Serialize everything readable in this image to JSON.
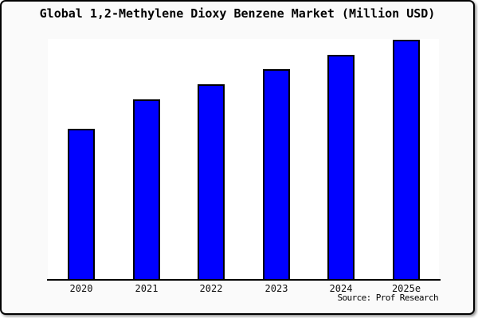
{
  "title": "Global 1,2-Methylene Dioxy Benzene Market (Million USD)",
  "source_credit": "Source: Prof Research",
  "colors": {
    "card_background": "#fafafa",
    "plot_background": "#ffffff",
    "bar_fill": "#0000ff",
    "bar_border": "#000000",
    "axis": "#000000"
  },
  "chart_data": {
    "type": "bar",
    "title": "Global 1,2-Methylene Dioxy Benzene Market (Million USD)",
    "categories": [
      "2020",
      "2021",
      "2022",
      "2023",
      "2024",
      "2025e"
    ],
    "values": [
      62.8,
      75.1,
      81.4,
      87.7,
      93.7,
      100
    ],
    "value_units": "relative index (no y-axis scale shown; 2025e bar = 100)",
    "xlabel": "",
    "ylabel": "",
    "ylim": [
      0,
      100
    ],
    "grid": false,
    "legend_position": "none",
    "annotations": [
      "Source: Prof Research"
    ]
  }
}
